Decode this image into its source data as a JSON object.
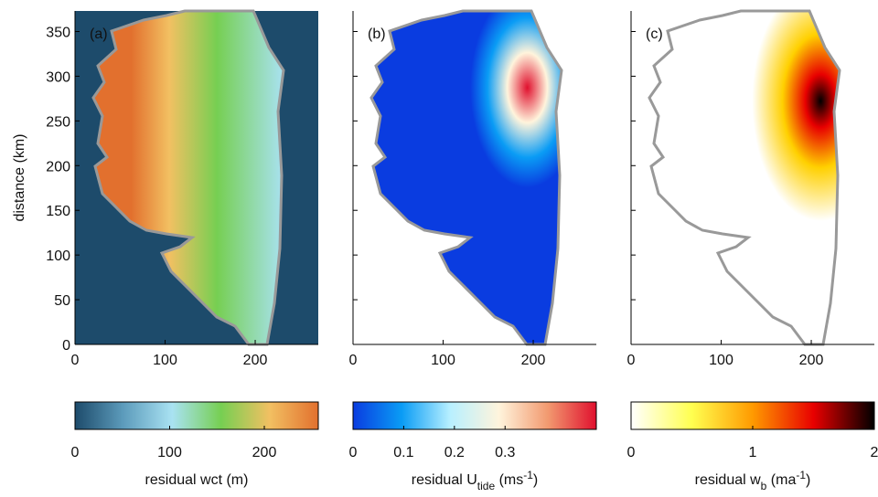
{
  "chart_data": [
    {
      "type": "heatmap",
      "panel_label": "(a)",
      "ylabel": "distance (km)",
      "xlim": [
        0,
        270
      ],
      "xticks": [
        0,
        100,
        200
      ],
      "ylim": [
        0,
        373
      ],
      "yticks": [
        0,
        50,
        100,
        150,
        200,
        250,
        300,
        350
      ],
      "colorbar": {
        "lim": [
          0,
          257
        ],
        "ticks": [
          0,
          100,
          200
        ],
        "label": [
          "residual wct (m)"
        ],
        "colors": [
          "#1d4b6b",
          "#5d9cbc",
          "#a9e2f2",
          "#76cf52",
          "#f2c062",
          "#e2702e"
        ]
      }
    },
    {
      "type": "heatmap",
      "panel_label": "(b)",
      "xlim": [
        0,
        270
      ],
      "xticks": [
        0,
        100,
        200
      ],
      "colorbar": {
        "lim": [
          0,
          0.48
        ],
        "ticks": [
          0,
          0.1,
          0.2,
          0.3
        ],
        "label": [
          "residual U",
          "tide",
          " (ms",
          "-1",
          ")"
        ],
        "colors": [
          "#0a3ce0",
          "#0a9cf5",
          "#b8f0ff",
          "#fff4dc",
          "#f29a70",
          "#e0102e"
        ]
      }
    },
    {
      "type": "heatmap",
      "panel_label": "(c)",
      "xlim": [
        0,
        270
      ],
      "xticks": [
        0,
        100,
        200
      ],
      "colorbar": {
        "lim": [
          0,
          2
        ],
        "ticks": [
          0,
          1,
          2
        ],
        "label": [
          "residual w",
          "b",
          " (ma",
          "-1",
          ")"
        ],
        "colors": [
          "#ffffff",
          "#ffff50",
          "#ff9a00",
          "#e80000",
          "#000000"
        ]
      }
    }
  ]
}
